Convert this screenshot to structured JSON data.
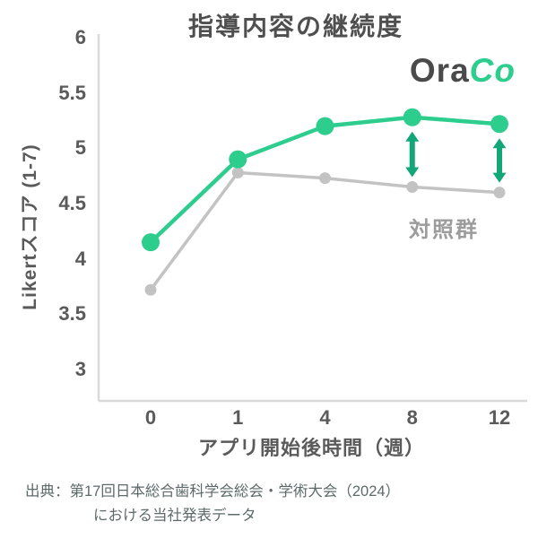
{
  "title": "指導内容の継続度",
  "logo": {
    "part1": "Ora",
    "part2": "Co"
  },
  "chart_data": {
    "type": "line",
    "title": "指導内容の継続度",
    "xlabel": "アプリ開始後時間（週）",
    "ylabel": "Likertスコア (1-7)",
    "categories": [
      "0",
      "1",
      "4",
      "8",
      "12"
    ],
    "ylim": [
      3,
      6
    ],
    "yticks": [
      6,
      5.5,
      5,
      4.5,
      4,
      3.5,
      3
    ],
    "grid": false,
    "legend": "none",
    "series": [
      {
        "name": "OraCo",
        "color": "#2dcd8d",
        "point_radius": 10,
        "line_width": 4.5,
        "values": [
          4.15,
          4.9,
          5.2,
          5.28,
          5.22
        ]
      },
      {
        "name": "対照群",
        "color": "#c3c3c3",
        "point_radius": 6.5,
        "line_width": 3.5,
        "values": [
          3.72,
          4.78,
          4.73,
          4.65,
          4.6
        ]
      }
    ],
    "annotations": {
      "control_group_label": "対照群",
      "gap_arrows_at_categories": [
        "8",
        "12"
      ],
      "arrow_color": "#12a678"
    }
  },
  "footer": {
    "line1": "出典：第17回日本総合歯科学会総会・学術大会（2024）",
    "line2": "における当社発表データ"
  },
  "colors": {
    "title_text": "#4f4f4f",
    "axis_text": "#5a5a5a",
    "axis_line": "#d9d9d9",
    "footer_text": "#5e6a6a",
    "brand_green": "#2dcd8d",
    "control_gray": "#9c9c9c"
  }
}
